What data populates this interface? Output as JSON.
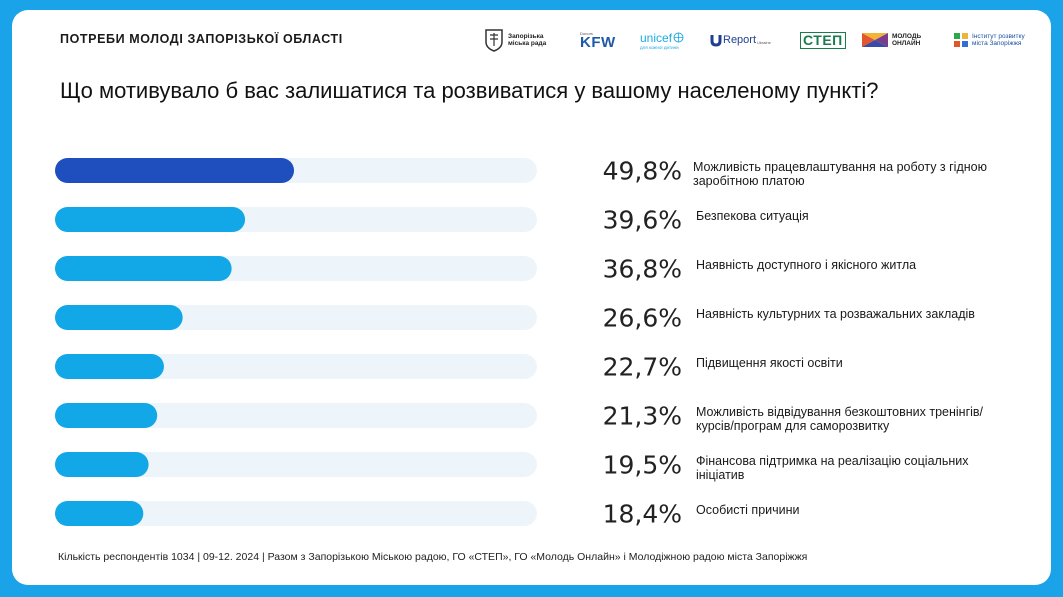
{
  "header": {
    "title": "ПОТРЕБИ МОЛОДІ ЗАПОРІЗЬКОЇ ОБЛАСТІ",
    "logos": {
      "city_council": "Запорізька\nміська рада",
      "kfw_small": "Donors",
      "kfw": "KFW",
      "unicef": "unicef",
      "unicef_sub": "для кожної дитини",
      "ureport": "Report",
      "ureport_sub": "Ukraine",
      "step": "СТЕП",
      "molod_online": "МОЛОДЬ\nОНЛАЙН",
      "institute": "Інститут розвитку\nміста Запоріжжя"
    }
  },
  "question": "Що мотивувало б вас залишатися та розвиватися у вашому населеному пункті?",
  "colors": {
    "top_bar": "#1f4fbf",
    "bar": "#12a7e6",
    "track": "#eef5fa",
    "background": "#1aa3e8"
  },
  "chart_data": {
    "type": "bar",
    "orientation": "horizontal",
    "xlim": [
      0,
      100
    ],
    "categories": [
      "Можливість працевлаштування на роботу з гідною заробітною платою",
      "Безпекова ситуація",
      "Наявність доступного і якісного житла",
      "Наявність культурних та розважальних закладів",
      "Підвищення якості освіти",
      "Можливість відвідування безкоштовних тренінгів/ курсів/програм для саморозвитку",
      "Фінансова підтримка на реалізацію соціальних ініціатив",
      "Особисті причини"
    ],
    "category_lines": [
      [
        "Можливість працевлаштування на роботу з гідною",
        "заробітною платою"
      ],
      [
        "Безпекова ситуація"
      ],
      [
        "Наявність доступного і якісного житла"
      ],
      [
        "Наявність культурних та розважальних закладів"
      ],
      [
        "Підвищення якості освіти"
      ],
      [
        "Можливість відвідування безкоштовних тренінгів/",
        "курсів/програм для саморозвитку"
      ],
      [
        "Фінансова підтримка на реалізацію соціальних",
        "ініціатив"
      ],
      [
        "Особисті причини"
      ]
    ],
    "values": [
      49.8,
      39.6,
      36.8,
      26.6,
      22.7,
      21.3,
      19.5,
      18.4
    ],
    "value_labels": [
      "49,8%",
      "39,6%",
      "36,8%",
      "26,6%",
      "22,7%",
      "21,3%",
      "19,5%",
      "18,4%"
    ]
  },
  "footer": "Кількість респондентів 1034 | 09-12. 2024 | Разом з Запорізькою Міською радою, ГО «СТЕП», ГО «Молодь Онлайн» і Молодіжною радою міста Запоріжжя"
}
